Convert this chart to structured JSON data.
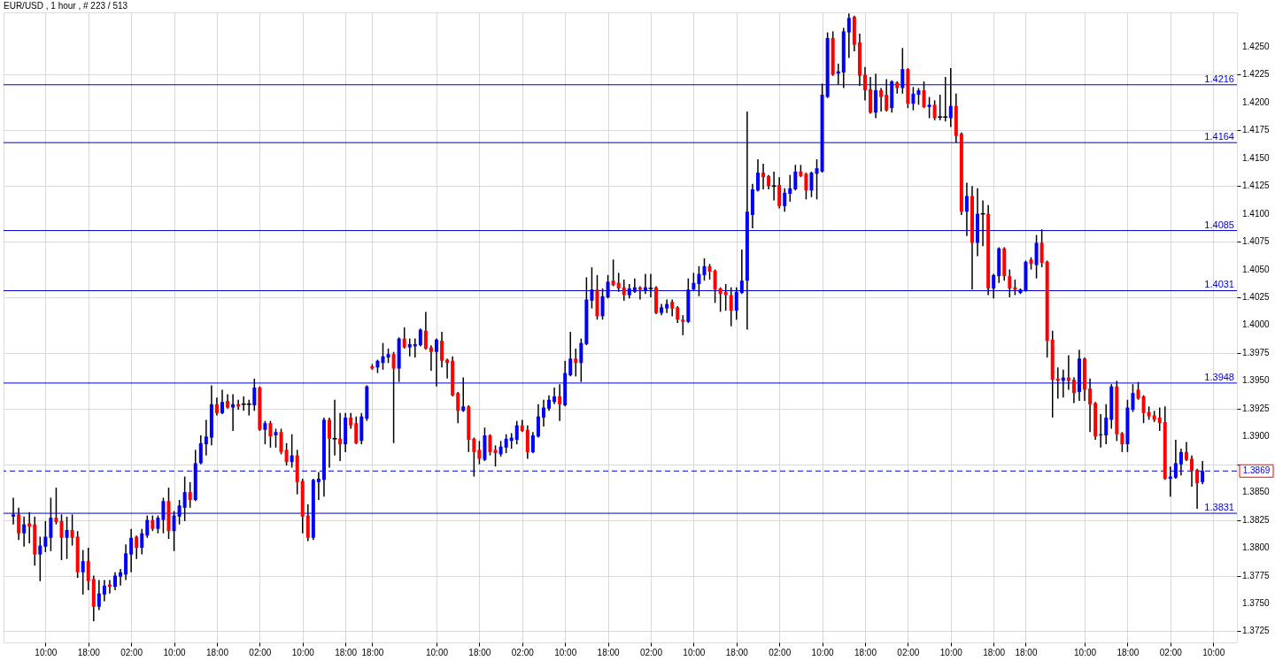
{
  "chart_data": {
    "type": "candlestick",
    "title": "EUR/USD , 1 hour , # 223 / 513",
    "categories": [
      null,
      null,
      null,
      null,
      null,
      null,
      "10:00",
      null,
      null,
      null,
      null,
      null,
      null,
      null,
      "18:00",
      null,
      null,
      null,
      null,
      null,
      null,
      null,
      "02:00",
      null,
      null,
      null,
      null,
      null,
      null,
      null,
      "10:00",
      null,
      null,
      null,
      null,
      null,
      null,
      null,
      "18:00",
      null,
      null,
      null,
      null,
      null,
      null,
      null,
      "02:00",
      null,
      null,
      null,
      null,
      null,
      null,
      null,
      "10:00",
      null,
      null,
      null,
      null,
      null,
      null,
      null,
      "18:00",
      null,
      null,
      null,
      null,
      "18:00",
      null,
      null,
      null,
      null,
      null,
      null,
      null,
      null,
      null,
      null,
      null,
      "10:00",
      null,
      null,
      null,
      null,
      null,
      null,
      null,
      "18:00",
      null,
      null,
      null,
      null,
      null,
      null,
      null,
      "02:00",
      null,
      null,
      null,
      null,
      null,
      null,
      null,
      "10:00",
      null,
      null,
      null,
      null,
      null,
      null,
      null,
      "18:00",
      null,
      null,
      null,
      null,
      null,
      null,
      null,
      "02:00",
      null,
      null,
      null,
      null,
      null,
      null,
      null,
      "10:00",
      null,
      null,
      null,
      null,
      null,
      null,
      null,
      "18:00",
      null,
      null,
      null,
      null,
      null,
      null,
      null,
      "02:00",
      null,
      null,
      null,
      null,
      null,
      null,
      null,
      "10:00",
      null,
      null,
      null,
      null,
      null,
      null,
      null,
      "18:00",
      null,
      null,
      null,
      null,
      null,
      null,
      null,
      "02:00",
      null,
      null,
      null,
      null,
      null,
      null,
      null,
      "10:00",
      null,
      null,
      null,
      null,
      null,
      null,
      null,
      "18:00",
      null,
      null,
      null,
      null,
      null,
      "18:00",
      null,
      null,
      null,
      null,
      null,
      null,
      null,
      null,
      null,
      null,
      "10:00",
      null,
      null,
      null,
      null,
      null,
      null,
      null,
      "18:00",
      null,
      null,
      null,
      null,
      null,
      null,
      null,
      "02:00",
      null,
      null,
      null,
      null,
      null,
      null,
      null,
      "10:00"
    ],
    "ohlc": [
      [
        1.3828,
        1.3845,
        1.3821,
        1.383
      ],
      [
        1.383,
        1.3836,
        1.3807,
        1.3813
      ],
      [
        1.3813,
        1.3828,
        1.3801,
        1.3821
      ],
      [
        1.3822,
        1.3832,
        1.3804,
        1.3819
      ],
      [
        1.3821,
        1.3828,
        1.3784,
        1.3794
      ],
      [
        1.3794,
        1.381,
        1.377,
        1.3802
      ],
      [
        1.3801,
        1.3824,
        1.3796,
        1.381
      ],
      [
        1.3809,
        1.3845,
        1.3797,
        1.3827
      ],
      [
        1.3827,
        1.3854,
        1.3821,
        1.3823
      ],
      [
        1.3824,
        1.383,
        1.3789,
        1.3809
      ],
      [
        1.3809,
        1.3828,
        1.379,
        1.3816
      ],
      [
        1.3816,
        1.383,
        1.3802,
        1.3809
      ],
      [
        1.381,
        1.3815,
        1.3773,
        1.3778
      ],
      [
        1.3778,
        1.3798,
        1.3758,
        1.3788
      ],
      [
        1.3788,
        1.38,
        1.3762,
        1.377
      ],
      [
        1.3772,
        1.3775,
        1.3734,
        1.3747
      ],
      [
        1.3747,
        1.3771,
        1.3744,
        1.3759
      ],
      [
        1.3758,
        1.3771,
        1.3752,
        1.3766
      ],
      [
        1.3767,
        1.3771,
        1.3759,
        1.3765
      ],
      [
        1.3765,
        1.3778,
        1.3762,
        1.3775
      ],
      [
        1.3774,
        1.3781,
        1.3766,
        1.3778
      ],
      [
        1.3776,
        1.3803,
        1.3771,
        1.3795
      ],
      [
        1.3794,
        1.3817,
        1.3778,
        1.3809
      ],
      [
        1.381,
        1.3811,
        1.379,
        1.38
      ],
      [
        1.38,
        1.3817,
        1.3794,
        1.3813
      ],
      [
        1.3811,
        1.3829,
        1.3809,
        1.3825
      ],
      [
        1.3825,
        1.3829,
        1.3815,
        1.3817
      ],
      [
        1.3817,
        1.3829,
        1.3813,
        1.3827
      ],
      [
        1.3825,
        1.3845,
        1.3813,
        1.3842
      ],
      [
        1.3842,
        1.3854,
        1.3808,
        1.3815
      ],
      [
        1.3815,
        1.3833,
        1.3797,
        1.3829
      ],
      [
        1.3828,
        1.3843,
        1.3821,
        1.3838
      ],
      [
        1.3836,
        1.3864,
        1.3824,
        1.385
      ],
      [
        1.385,
        1.3859,
        1.3836,
        1.3843
      ],
      [
        1.3843,
        1.3888,
        1.3842,
        1.3876
      ],
      [
        1.3876,
        1.3901,
        1.3875,
        1.3894
      ],
      [
        1.3893,
        1.3915,
        1.3883,
        1.39
      ],
      [
        1.3899,
        1.3946,
        1.3892,
        1.3929
      ],
      [
        1.3929,
        1.3935,
        1.3919,
        1.3921
      ],
      [
        1.3921,
        1.3942,
        1.392,
        1.3931
      ],
      [
        1.3932,
        1.3938,
        1.3925,
        1.3926
      ],
      [
        1.3926,
        1.3938,
        1.3905,
        1.3929
      ],
      [
        1.3929,
        1.3933,
        1.3924,
        1.3927
      ],
      [
        1.3929,
        1.3936,
        1.3923,
        1.3929
      ],
      [
        1.3929,
        1.3933,
        1.3919,
        1.3929
      ],
      [
        1.3928,
        1.3952,
        1.3923,
        1.3944
      ],
      [
        1.3944,
        1.3945,
        1.3905,
        1.3906
      ],
      [
        1.3906,
        1.3914,
        1.3893,
        1.3912
      ],
      [
        1.3912,
        1.3914,
        1.389,
        1.39
      ],
      [
        1.3901,
        1.3907,
        1.389,
        1.3904
      ],
      [
        1.3904,
        1.3907,
        1.3884,
        1.3886
      ],
      [
        1.3888,
        1.3894,
        1.3874,
        1.3877
      ],
      [
        1.3877,
        1.3902,
        1.3872,
        1.3883
      ],
      [
        1.3883,
        1.3888,
        1.3848,
        1.3859
      ],
      [
        1.386,
        1.3862,
        1.3813,
        1.3828
      ],
      [
        1.3829,
        1.3839,
        1.3806,
        1.3809
      ],
      [
        1.3809,
        1.3862,
        1.3807,
        1.3861
      ],
      [
        1.3859,
        1.3868,
        1.3843,
        1.3862
      ],
      [
        1.3861,
        1.3917,
        1.3846,
        1.3915
      ],
      [
        1.3915,
        1.3917,
        1.3872,
        1.3898
      ],
      [
        1.3898,
        1.3933,
        1.3883,
        1.3898
      ],
      [
        1.3898,
        1.3921,
        1.3878,
        1.3893
      ],
      [
        1.3893,
        1.3921,
        1.3886,
        1.3917
      ],
      [
        1.3917,
        1.3921,
        1.3907,
        1.391
      ],
      [
        1.3912,
        1.3918,
        1.3893,
        1.3894
      ],
      [
        1.3896,
        1.3921,
        1.3893,
        1.3918
      ],
      [
        1.3916,
        1.3946,
        1.3914,
        1.3945
      ],
      [
        1.3963,
        1.3965,
        1.396,
        1.3961
      ],
      [
        1.3962,
        1.3969,
        1.3957,
        1.3968
      ],
      [
        1.3966,
        1.3984,
        1.396,
        1.3972
      ],
      [
        1.3971,
        1.3979,
        1.3966,
        1.3974
      ],
      [
        1.3974,
        1.3976,
        1.3894,
        1.3961
      ],
      [
        1.3961,
        1.3989,
        1.3949,
        1.3988
      ],
      [
        1.3988,
        1.3998,
        1.3979,
        1.398
      ],
      [
        1.398,
        1.3988,
        1.3972,
        1.3983
      ],
      [
        1.3981,
        1.3988,
        1.3971,
        1.3983
      ],
      [
        1.3982,
        1.3997,
        1.3981,
        1.3996
      ],
      [
        1.3995,
        1.4012,
        1.3978,
        1.3979
      ],
      [
        1.398,
        1.3982,
        1.3959,
        1.3976
      ],
      [
        1.3976,
        1.3988,
        1.3945,
        1.3987
      ],
      [
        1.3986,
        1.3994,
        1.3962,
        1.3968
      ],
      [
        1.3969,
        1.397,
        1.3952,
        1.3966
      ],
      [
        1.3968,
        1.3972,
        1.3936,
        1.3937
      ],
      [
        1.3939,
        1.394,
        1.3912,
        1.3923
      ],
      [
        1.3923,
        1.3953,
        1.3922,
        1.3927
      ],
      [
        1.3927,
        1.3928,
        1.3886,
        1.3897
      ],
      [
        1.3898,
        1.3899,
        1.3864,
        1.3886
      ],
      [
        1.3888,
        1.3896,
        1.3875,
        1.388
      ],
      [
        1.3879,
        1.3908,
        1.3878,
        1.3901
      ],
      [
        1.3901,
        1.3902,
        1.3883,
        1.3886
      ],
      [
        1.3888,
        1.3892,
        1.3873,
        1.3885
      ],
      [
        1.3884,
        1.3896,
        1.3882,
        1.3891
      ],
      [
        1.389,
        1.3902,
        1.3885,
        1.3898
      ],
      [
        1.3896,
        1.3903,
        1.3889,
        1.3899
      ],
      [
        1.3897,
        1.3914,
        1.3893,
        1.391
      ],
      [
        1.391,
        1.3915,
        1.3904,
        1.3905
      ],
      [
        1.3906,
        1.391,
        1.388,
        1.3886
      ],
      [
        1.3886,
        1.3904,
        1.3885,
        1.3901
      ],
      [
        1.39,
        1.3929,
        1.3899,
        1.3918
      ],
      [
        1.3917,
        1.3933,
        1.3909,
        1.3926
      ],
      [
        1.3925,
        1.3937,
        1.3923,
        1.3933
      ],
      [
        1.3931,
        1.3944,
        1.3929,
        1.3936
      ],
      [
        1.3936,
        1.3947,
        1.3914,
        1.3929
      ],
      [
        1.3928,
        1.3968,
        1.3927,
        1.3957
      ],
      [
        1.3955,
        1.3994,
        1.3954,
        1.397
      ],
      [
        1.397,
        1.3979,
        1.3954,
        1.3966
      ],
      [
        1.3966,
        1.3988,
        1.3949,
        1.3984
      ],
      [
        1.3983,
        1.4043,
        1.3982,
        1.4023
      ],
      [
        1.4022,
        1.4052,
        1.4015,
        1.4032
      ],
      [
        1.4032,
        1.4045,
        1.4005,
        1.4008
      ],
      [
        1.4008,
        1.4033,
        1.4005,
        1.4026
      ],
      [
        1.4025,
        1.4045,
        1.4024,
        1.4039
      ],
      [
        1.404,
        1.4059,
        1.4035,
        1.4036
      ],
      [
        1.4038,
        1.4047,
        1.403,
        1.4033
      ],
      [
        1.4034,
        1.4041,
        1.4022,
        1.4027
      ],
      [
        1.4027,
        1.4037,
        1.4024,
        1.4033
      ],
      [
        1.403,
        1.4042,
        1.4029,
        1.4034
      ],
      [
        1.4034,
        1.4035,
        1.4023,
        1.4032
      ],
      [
        1.4031,
        1.4046,
        1.4028,
        1.4034
      ],
      [
        1.4033,
        1.4046,
        1.4025,
        1.4033
      ],
      [
        1.4034,
        1.4035,
        1.401,
        1.4011
      ],
      [
        1.4011,
        1.4019,
        1.4009,
        1.4016
      ],
      [
        1.4015,
        1.4023,
        1.4011,
        1.4019
      ],
      [
        1.4021,
        1.4023,
        1.4008,
        1.4015
      ],
      [
        1.4016,
        1.4017,
        1.4002,
        1.4005
      ],
      [
        1.4005,
        1.4009,
        1.3991,
        1.4003
      ],
      [
        1.4003,
        1.4042,
        1.4002,
        1.4032
      ],
      [
        1.4032,
        1.4047,
        1.4031,
        1.4038
      ],
      [
        1.4037,
        1.4053,
        1.4026,
        1.4046
      ],
      [
        1.4045,
        1.406,
        1.404,
        1.4053
      ],
      [
        1.4053,
        1.4055,
        1.4041,
        1.4048
      ],
      [
        1.4049,
        1.405,
        1.402,
        1.4032
      ],
      [
        1.4033,
        1.4034,
        1.4012,
        1.4028
      ],
      [
        1.403,
        1.4037,
        1.4013,
        1.4027
      ],
      [
        1.4027,
        1.4034,
        1.3999,
        1.4013
      ],
      [
        1.4013,
        1.4034,
        1.4005,
        1.403
      ],
      [
        1.4029,
        1.4068,
        1.4028,
        1.404
      ],
      [
        1.404,
        1.4192,
        1.3996,
        1.4102
      ],
      [
        1.4099,
        1.4127,
        1.4087,
        1.4122
      ],
      [
        1.4121,
        1.4149,
        1.412,
        1.4137
      ],
      [
        1.4137,
        1.4145,
        1.4122,
        1.4133
      ],
      [
        1.4134,
        1.4135,
        1.4122,
        1.4125
      ],
      [
        1.4125,
        1.4138,
        1.4112,
        1.4125
      ],
      [
        1.4126,
        1.4133,
        1.4105,
        1.4107
      ],
      [
        1.4107,
        1.4123,
        1.4102,
        1.4119
      ],
      [
        1.4118,
        1.4135,
        1.4111,
        1.4123
      ],
      [
        1.4122,
        1.4144,
        1.4121,
        1.4138
      ],
      [
        1.4138,
        1.4144,
        1.4133,
        1.4134
      ],
      [
        1.4136,
        1.4137,
        1.4113,
        1.4121
      ],
      [
        1.4121,
        1.4138,
        1.4115,
        1.4137
      ],
      [
        1.4136,
        1.4149,
        1.4113,
        1.4141
      ],
      [
        1.4138,
        1.4217,
        1.4137,
        1.4207
      ],
      [
        1.4205,
        1.4263,
        1.4204,
        1.4258
      ],
      [
        1.4258,
        1.4264,
        1.4224,
        1.4225
      ],
      [
        1.4226,
        1.4235,
        1.4216,
        1.4228
      ],
      [
        1.4227,
        1.4267,
        1.4213,
        1.4264
      ],
      [
        1.4263,
        1.428,
        1.424,
        1.4276
      ],
      [
        1.4277,
        1.4278,
        1.4246,
        1.4252
      ],
      [
        1.4254,
        1.4262,
        1.4215,
        1.4224
      ],
      [
        1.4225,
        1.4232,
        1.4202,
        1.4211
      ],
      [
        1.4212,
        1.4223,
        1.419,
        1.4191
      ],
      [
        1.4191,
        1.4226,
        1.4186,
        1.4211
      ],
      [
        1.4211,
        1.4213,
        1.4192,
        1.4205
      ],
      [
        1.4207,
        1.4221,
        1.4192,
        1.4193
      ],
      [
        1.4195,
        1.422,
        1.4191,
        1.4219
      ],
      [
        1.4218,
        1.4219,
        1.4208,
        1.4213
      ],
      [
        1.4213,
        1.4249,
        1.4208,
        1.423
      ],
      [
        1.423,
        1.4231,
        1.4195,
        1.4199
      ],
      [
        1.4199,
        1.4214,
        1.4193,
        1.4208
      ],
      [
        1.4207,
        1.4213,
        1.4198,
        1.4211
      ],
      [
        1.4211,
        1.4219,
        1.4195,
        1.4196
      ],
      [
        1.4196,
        1.4205,
        1.4186,
        1.4198
      ],
      [
        1.4198,
        1.4202,
        1.4184,
        1.4186
      ],
      [
        1.4187,
        1.4207,
        1.4184,
        1.4187
      ],
      [
        1.4187,
        1.4223,
        1.4183,
        1.4187
      ],
      [
        1.4186,
        1.4231,
        1.4178,
        1.4197
      ],
      [
        1.4197,
        1.4208,
        1.4164,
        1.417
      ],
      [
        1.4172,
        1.4173,
        1.4099,
        1.4102
      ],
      [
        1.4102,
        1.4128,
        1.408,
        1.4116
      ],
      [
        1.4116,
        1.4125,
        1.4032,
        1.4074
      ],
      [
        1.4074,
        1.4123,
        1.4062,
        1.41
      ],
      [
        1.41,
        1.4112,
        1.4071,
        1.41
      ],
      [
        1.41,
        1.4108,
        1.4027,
        1.4033
      ],
      [
        1.4033,
        1.4046,
        1.4024,
        1.4045
      ],
      [
        1.4044,
        1.407,
        1.4038,
        1.4069
      ],
      [
        1.4069,
        1.407,
        1.404,
        1.4044
      ],
      [
        1.4044,
        1.405,
        1.4025,
        1.4033
      ],
      [
        1.4034,
        1.4041,
        1.4027,
        1.4032
      ],
      [
        1.4029,
        1.4033,
        1.4028,
        1.4032
      ],
      [
        1.4031,
        1.4058,
        1.403,
        1.4057
      ],
      [
        1.4059,
        1.4061,
        1.405,
        1.4055
      ],
      [
        1.4054,
        1.4081,
        1.4042,
        1.4074
      ],
      [
        1.4074,
        1.4086,
        1.4052,
        1.4056
      ],
      [
        1.4057,
        1.4058,
        1.3971,
        1.3986
      ],
      [
        1.3987,
        1.3995,
        1.3917,
        1.3951
      ],
      [
        1.3952,
        1.3962,
        1.3934,
        1.395
      ],
      [
        1.395,
        1.396,
        1.3935,
        1.3953
      ],
      [
        1.3953,
        1.3973,
        1.3942,
        1.395
      ],
      [
        1.3951,
        1.3953,
        1.393,
        1.3939
      ],
      [
        1.394,
        1.3978,
        1.3932,
        1.397
      ],
      [
        1.397,
        1.3971,
        1.3932,
        1.3942
      ],
      [
        1.3943,
        1.3952,
        1.3904,
        1.3929
      ],
      [
        1.393,
        1.3931,
        1.3897,
        1.39
      ],
      [
        1.3901,
        1.392,
        1.389,
        1.3902
      ],
      [
        1.3901,
        1.3929,
        1.3893,
        1.3917
      ],
      [
        1.3915,
        1.3947,
        1.3907,
        1.3945
      ],
      [
        1.3945,
        1.395,
        1.3896,
        1.3902
      ],
      [
        1.3903,
        1.3904,
        1.3886,
        1.3893
      ],
      [
        1.3893,
        1.3933,
        1.3886,
        1.3926
      ],
      [
        1.3924,
        1.3947,
        1.3922,
        1.3939
      ],
      [
        1.3942,
        1.3949,
        1.3933,
        1.3934
      ],
      [
        1.3936,
        1.3937,
        1.3912,
        1.3921
      ],
      [
        1.3922,
        1.3927,
        1.3915,
        1.3918
      ],
      [
        1.3919,
        1.3923,
        1.3913,
        1.3915
      ],
      [
        1.3917,
        1.3926,
        1.3905,
        1.3912
      ],
      [
        1.3913,
        1.3927,
        1.3861,
        1.3862
      ],
      [
        1.3862,
        1.3873,
        1.3846,
        1.3864
      ],
      [
        1.3863,
        1.3897,
        1.3862,
        1.3876
      ],
      [
        1.3875,
        1.3889,
        1.3865,
        1.3886
      ],
      [
        1.3886,
        1.3895,
        1.3878,
        1.3879
      ],
      [
        1.388,
        1.3883,
        1.3855,
        1.3869
      ],
      [
        1.387,
        1.3871,
        1.3835,
        1.3858
      ],
      [
        1.3859,
        1.3878,
        1.3857,
        1.3869
      ],
      null,
      null
    ],
    "colors": [
      "#0000ff",
      "#ff0000",
      "#0000ff",
      "#ff0000",
      "#ff0000",
      "#0000ff",
      "#0000ff",
      "#0000ff",
      "#ff0000",
      "#ff0000",
      "#0000ff",
      "#ff0000",
      "#ff0000",
      "#0000ff",
      "#ff0000",
      "#ff0000",
      "#0000ff",
      "#0000ff",
      "#ff0000",
      "#0000ff",
      "#0000ff",
      "#0000ff",
      "#0000ff",
      "#ff0000",
      "#0000ff",
      "#0000ff",
      "#ff0000",
      "#0000ff",
      "#0000ff",
      "#ff0000",
      "#0000ff",
      "#0000ff",
      "#0000ff",
      "#ff0000",
      "#0000ff",
      "#0000ff",
      "#0000ff",
      "#0000ff",
      "#ff0000",
      "#0000ff",
      "#ff0000",
      "#0000ff",
      "#ff0000",
      "#000000",
      "#000000",
      "#0000ff",
      "#ff0000",
      "#0000ff",
      "#ff0000",
      "#0000ff",
      "#ff0000",
      "#ff0000",
      "#0000ff",
      "#ff0000",
      "#ff0000",
      "#ff0000",
      "#0000ff",
      "#0000ff",
      "#0000ff",
      "#ff0000",
      "#000000",
      "#ff0000",
      "#0000ff",
      "#ff0000",
      "#ff0000",
      "#0000ff",
      "#0000ff",
      "#ff0000",
      "#0000ff",
      "#0000ff",
      "#0000ff",
      "#ff0000",
      "#0000ff",
      "#ff0000",
      "#0000ff",
      "#0000ff",
      "#0000ff",
      "#ff0000",
      "#ff0000",
      "#0000ff",
      "#ff0000",
      "#ff0000",
      "#ff0000",
      "#ff0000",
      "#0000ff",
      "#ff0000",
      "#ff0000",
      "#ff0000",
      "#0000ff",
      "#ff0000",
      "#ff0000",
      "#0000ff",
      "#0000ff",
      "#0000ff",
      "#0000ff",
      "#ff0000",
      "#ff0000",
      "#0000ff",
      "#0000ff",
      "#0000ff",
      "#0000ff",
      "#0000ff",
      "#ff0000",
      "#0000ff",
      "#0000ff",
      "#ff0000",
      "#0000ff",
      "#0000ff",
      "#0000ff",
      "#ff0000",
      "#0000ff",
      "#0000ff",
      "#ff0000",
      "#ff0000",
      "#ff0000",
      "#0000ff",
      "#0000ff",
      "#ff0000",
      "#0000ff",
      "#000000",
      "#ff0000",
      "#0000ff",
      "#0000ff",
      "#ff0000",
      "#ff0000",
      "#ff0000",
      "#0000ff",
      "#0000ff",
      "#0000ff",
      "#0000ff",
      "#ff0000",
      "#ff0000",
      "#ff0000",
      "#ff0000",
      "#ff0000",
      "#0000ff",
      "#0000ff",
      "#0000ff",
      "#0000ff",
      "#0000ff",
      "#ff0000",
      "#ff0000",
      "#000000",
      "#ff0000",
      "#0000ff",
      "#0000ff",
      "#0000ff",
      "#ff0000",
      "#ff0000",
      "#0000ff",
      "#0000ff",
      "#0000ff",
      "#0000ff",
      "#ff0000",
      "#0000ff",
      "#0000ff",
      "#0000ff",
      "#ff0000",
      "#ff0000",
      "#ff0000",
      "#ff0000",
      "#0000ff",
      "#ff0000",
      "#ff0000",
      "#0000ff",
      "#ff0000",
      "#0000ff",
      "#ff0000",
      "#0000ff",
      "#0000ff",
      "#ff0000",
      "#0000ff",
      "#ff0000",
      "#000000",
      "#000000",
      "#0000ff",
      "#ff0000",
      "#ff0000",
      "#0000ff",
      "#ff0000",
      "#0000ff",
      "#000000",
      "#ff0000",
      "#0000ff",
      "#0000ff",
      "#ff0000",
      "#ff0000",
      "#ff0000",
      "#0000ff",
      "#0000ff",
      "#ff0000",
      "#0000ff",
      "#ff0000",
      "#ff0000",
      "#ff0000",
      "#ff0000",
      "#0000ff",
      "#ff0000",
      "#ff0000",
      "#0000ff",
      "#ff0000",
      "#ff0000",
      "#ff0000",
      "#0000ff",
      "#0000ff",
      "#0000ff",
      "#ff0000",
      "#ff0000",
      "#0000ff",
      "#0000ff",
      "#ff0000",
      "#ff0000",
      "#ff0000",
      "#ff0000",
      "#ff0000",
      "#ff0000",
      "#0000ff",
      "#0000ff",
      "#0000ff",
      "#ff0000",
      "#ff0000",
      "#ff0000",
      "#0000ff",
      null,
      null
    ],
    "ylim": [
      1.3715,
      1.4281
    ],
    "yticks": [
      {
        "value": 1.3725,
        "label": "1.3725"
      },
      {
        "value": 1.375,
        "label": "1.3750"
      },
      {
        "value": 1.3775,
        "label": "1.3775"
      },
      {
        "value": 1.38,
        "label": "1.3800"
      },
      {
        "value": 1.3825,
        "label": "1.3825"
      },
      {
        "value": 1.385,
        "label": "1.3850"
      },
      {
        "value": 1.3875,
        "label": null
      },
      {
        "value": 1.39,
        "label": "1.3900"
      },
      {
        "value": 1.3925,
        "label": "1.3925"
      },
      {
        "value": 1.395,
        "label": "1.3950"
      },
      {
        "value": 1.3975,
        "label": "1.3975"
      },
      {
        "value": 1.4,
        "label": "1.4000"
      },
      {
        "value": 1.4025,
        "label": "1.4025"
      },
      {
        "value": 1.405,
        "label": "1.4050"
      },
      {
        "value": 1.4075,
        "label": "1.4075"
      },
      {
        "value": 1.41,
        "label": "1.4100"
      },
      {
        "value": 1.4125,
        "label": "1.4125"
      },
      {
        "value": 1.415,
        "label": "1.4150"
      },
      {
        "value": 1.4175,
        "label": "1.4175"
      },
      {
        "value": 1.42,
        "label": "1.4200"
      },
      {
        "value": 1.4225,
        "label": "1.4225"
      },
      {
        "value": 1.425,
        "label": "1.4250"
      }
    ],
    "grid": true,
    "ref_lines": [
      {
        "axis": "y",
        "value": 1.4216,
        "label": "1.4216",
        "color": "#0000cc",
        "line_style": "solid"
      },
      {
        "axis": "y",
        "value": 1.4164,
        "label": "1.4164",
        "color": "#0000cc",
        "line_style": "solid"
      },
      {
        "axis": "y",
        "value": 1.4085,
        "label": "1.4085",
        "color": "#0000cc",
        "line_style": "solid"
      },
      {
        "axis": "y",
        "value": 1.4031,
        "label": "1.4031",
        "color": "#0000cc",
        "line_style": "solid"
      },
      {
        "axis": "y",
        "value": 1.3948,
        "label": "1.3948",
        "color": "#0000cc",
        "line_style": "solid"
      },
      {
        "axis": "y",
        "value": 1.3831,
        "label": "1.3831",
        "color": "#0000cc",
        "line_style": "solid"
      },
      {
        "axis": "y",
        "value": 1.3869,
        "label": "1.3869",
        "color": "#0000cc",
        "line_style": "dashed"
      }
    ]
  }
}
